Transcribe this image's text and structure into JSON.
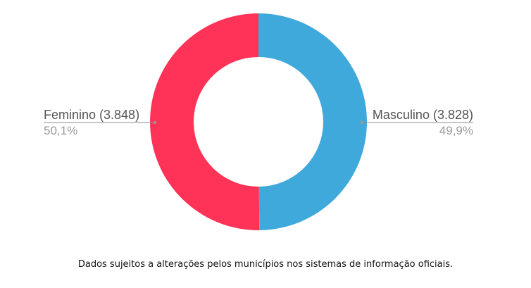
{
  "chart_data": {
    "type": "pie",
    "donut": true,
    "categories": [
      "Feminino",
      "Masculino"
    ],
    "values": [
      3848,
      3828
    ],
    "percent_labels": [
      "50,1%",
      "49,9%"
    ],
    "slice_labels": [
      "Feminino (3.848)",
      "Masculino (3.828)"
    ],
    "colors": [
      "#ff3358",
      "#3fa9dc"
    ],
    "legend": "none"
  },
  "footnote": "Dados sujeitos a alterações pelos municípios nos sistemas de informação oficiais."
}
